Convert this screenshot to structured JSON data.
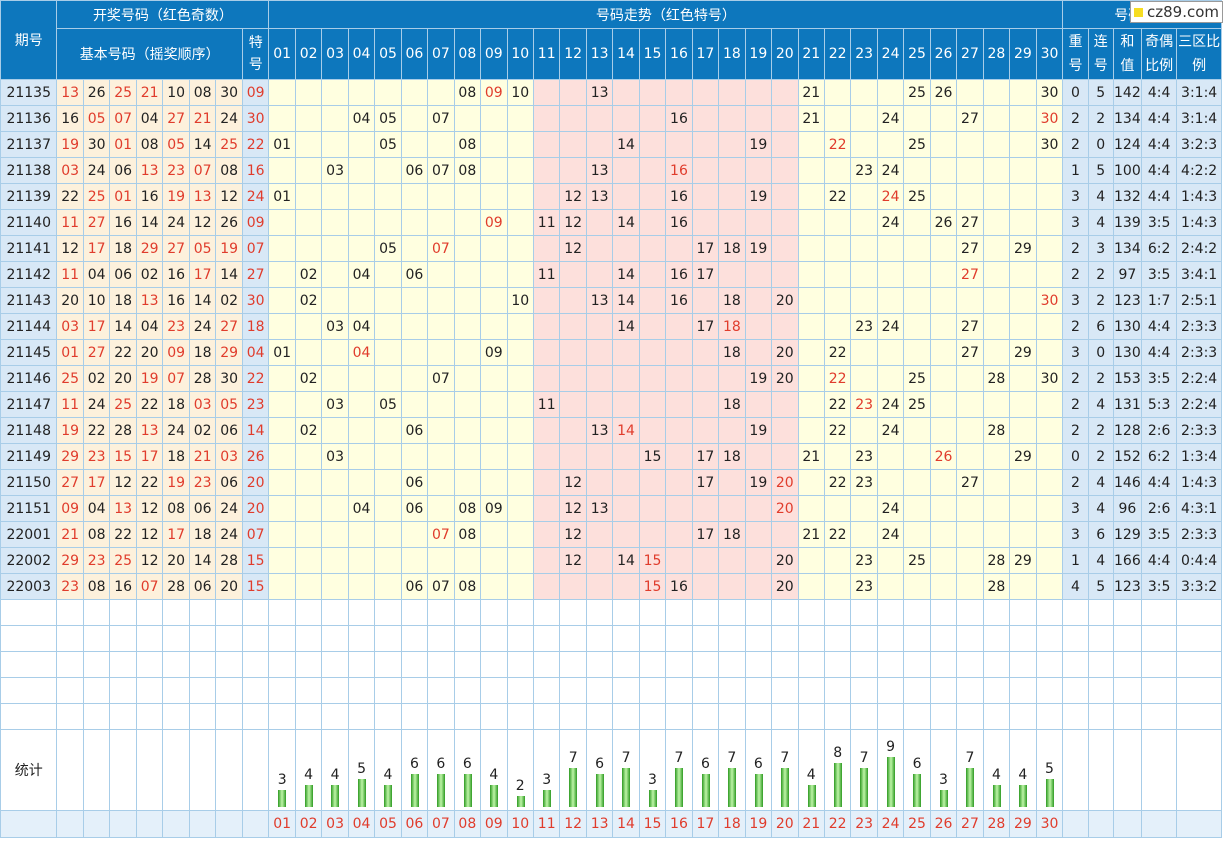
{
  "header": {
    "issue": "期号",
    "draw_group": "开奖号码（红色奇数）",
    "basic_numbers": "基本号码（摇奖顺序）",
    "special": "特号",
    "trend_group": "号码走势（红色特号）",
    "analysis_group": "号码分析",
    "repeat": "重号",
    "consec": "连号",
    "sum": "和值",
    "odd_even": "奇偶比例",
    "zone": "三区比例"
  },
  "columns": [
    "01",
    "02",
    "03",
    "04",
    "05",
    "06",
    "07",
    "08",
    "09",
    "10",
    "11",
    "12",
    "13",
    "14",
    "15",
    "16",
    "17",
    "18",
    "19",
    "20",
    "21",
    "22",
    "23",
    "24",
    "25",
    "26",
    "27",
    "28",
    "29",
    "30"
  ],
  "rows": [
    {
      "id": "21135",
      "nums": [
        "13",
        "26",
        "25",
        "21",
        "10",
        "08",
        "30"
      ],
      "sp": "09",
      "rep": "0",
      "con": "5",
      "sum": "142",
      "oe": "4:4",
      "zone": "3:1:4"
    },
    {
      "id": "21136",
      "nums": [
        "16",
        "05",
        "07",
        "04",
        "27",
        "21",
        "24"
      ],
      "sp": "30",
      "rep": "2",
      "con": "2",
      "sum": "134",
      "oe": "4:4",
      "zone": "3:1:4"
    },
    {
      "id": "21137",
      "nums": [
        "19",
        "30",
        "01",
        "08",
        "05",
        "14",
        "25"
      ],
      "sp": "22",
      "rep": "2",
      "con": "0",
      "sum": "124",
      "oe": "4:4",
      "zone": "3:2:3"
    },
    {
      "id": "21138",
      "nums": [
        "03",
        "24",
        "06",
        "13",
        "23",
        "07",
        "08"
      ],
      "sp": "16",
      "rep": "1",
      "con": "5",
      "sum": "100",
      "oe": "4:4",
      "zone": "4:2:2"
    },
    {
      "id": "21139",
      "nums": [
        "22",
        "25",
        "01",
        "16",
        "19",
        "13",
        "12"
      ],
      "sp": "24",
      "rep": "3",
      "con": "4",
      "sum": "132",
      "oe": "4:4",
      "zone": "1:4:3"
    },
    {
      "id": "21140",
      "nums": [
        "11",
        "27",
        "16",
        "14",
        "24",
        "12",
        "26"
      ],
      "sp": "09",
      "rep": "3",
      "con": "4",
      "sum": "139",
      "oe": "3:5",
      "zone": "1:4:3"
    },
    {
      "id": "21141",
      "nums": [
        "12",
        "17",
        "18",
        "29",
        "27",
        "05",
        "19"
      ],
      "sp": "07",
      "rep": "2",
      "con": "3",
      "sum": "134",
      "oe": "6:2",
      "zone": "2:4:2"
    },
    {
      "id": "21142",
      "nums": [
        "11",
        "04",
        "06",
        "02",
        "16",
        "17",
        "14"
      ],
      "sp": "27",
      "rep": "2",
      "con": "2",
      "sum": "97",
      "oe": "3:5",
      "zone": "3:4:1"
    },
    {
      "id": "21143",
      "nums": [
        "20",
        "10",
        "18",
        "13",
        "16",
        "14",
        "02"
      ],
      "sp": "30",
      "rep": "3",
      "con": "2",
      "sum": "123",
      "oe": "1:7",
      "zone": "2:5:1"
    },
    {
      "id": "21144",
      "nums": [
        "03",
        "17",
        "14",
        "04",
        "23",
        "24",
        "27"
      ],
      "sp": "18",
      "rep": "2",
      "con": "6",
      "sum": "130",
      "oe": "4:4",
      "zone": "2:3:3"
    },
    {
      "id": "21145",
      "nums": [
        "01",
        "27",
        "22",
        "20",
        "09",
        "18",
        "29"
      ],
      "sp": "04",
      "rep": "3",
      "con": "0",
      "sum": "130",
      "oe": "4:4",
      "zone": "2:3:3"
    },
    {
      "id": "21146",
      "nums": [
        "25",
        "02",
        "20",
        "19",
        "07",
        "28",
        "30"
      ],
      "sp": "22",
      "rep": "2",
      "con": "2",
      "sum": "153",
      "oe": "3:5",
      "zone": "2:2:4"
    },
    {
      "id": "21147",
      "nums": [
        "11",
        "24",
        "25",
        "22",
        "18",
        "03",
        "05"
      ],
      "sp": "23",
      "rep": "2",
      "con": "4",
      "sum": "131",
      "oe": "5:3",
      "zone": "2:2:4"
    },
    {
      "id": "21148",
      "nums": [
        "19",
        "22",
        "28",
        "13",
        "24",
        "02",
        "06"
      ],
      "sp": "14",
      "rep": "2",
      "con": "2",
      "sum": "128",
      "oe": "2:6",
      "zone": "2:3:3"
    },
    {
      "id": "21149",
      "nums": [
        "29",
        "23",
        "15",
        "17",
        "18",
        "21",
        "03"
      ],
      "sp": "26",
      "rep": "0",
      "con": "2",
      "sum": "152",
      "oe": "6:2",
      "zone": "1:3:4"
    },
    {
      "id": "21150",
      "nums": [
        "27",
        "17",
        "12",
        "22",
        "19",
        "23",
        "06"
      ],
      "sp": "20",
      "rep": "2",
      "con": "4",
      "sum": "146",
      "oe": "4:4",
      "zone": "1:4:3"
    },
    {
      "id": "21151",
      "nums": [
        "09",
        "04",
        "13",
        "12",
        "08",
        "06",
        "24"
      ],
      "sp": "20",
      "rep": "3",
      "con": "4",
      "sum": "96",
      "oe": "2:6",
      "zone": "4:3:1"
    },
    {
      "id": "22001",
      "nums": [
        "21",
        "08",
        "22",
        "12",
        "17",
        "18",
        "24"
      ],
      "sp": "07",
      "rep": "3",
      "con": "6",
      "sum": "129",
      "oe": "3:5",
      "zone": "2:3:3"
    },
    {
      "id": "22002",
      "nums": [
        "29",
        "23",
        "25",
        "12",
        "20",
        "14",
        "28"
      ],
      "sp": "15",
      "rep": "1",
      "con": "4",
      "sum": "166",
      "oe": "4:4",
      "zone": "0:4:4"
    },
    {
      "id": "22003",
      "nums": [
        "23",
        "08",
        "16",
        "07",
        "28",
        "06",
        "20"
      ],
      "sp": "15",
      "rep": "4",
      "con": "5",
      "sum": "123",
      "oe": "3:5",
      "zone": "3:3:2"
    }
  ],
  "stats_label": "统计",
  "chart_data": {
    "type": "bar",
    "categories": [
      "01",
      "02",
      "03",
      "04",
      "05",
      "06",
      "07",
      "08",
      "09",
      "10",
      "11",
      "12",
      "13",
      "14",
      "15",
      "16",
      "17",
      "18",
      "19",
      "20",
      "21",
      "22",
      "23",
      "24",
      "25",
      "26",
      "27",
      "28",
      "29",
      "30"
    ],
    "values": [
      3,
      4,
      4,
      5,
      4,
      6,
      6,
      6,
      4,
      2,
      3,
      7,
      6,
      7,
      3,
      7,
      6,
      7,
      6,
      7,
      4,
      8,
      7,
      9,
      6,
      3,
      7,
      4,
      4,
      5
    ],
    "title": "",
    "xlabel": "",
    "ylabel": "",
    "ylim": [
      0,
      9
    ],
    "color": "#2e9a22",
    "grid": true,
    "legend": "none"
  },
  "colors": {
    "header": "#0d77bd",
    "red": "#e03c2c",
    "bar": "#2e9a22",
    "yellow_zone": "#ffffe0",
    "pink_zone": "#fde0dc"
  },
  "badge": {
    "icon": "yellow-square-icon",
    "text": "cz89.com"
  }
}
